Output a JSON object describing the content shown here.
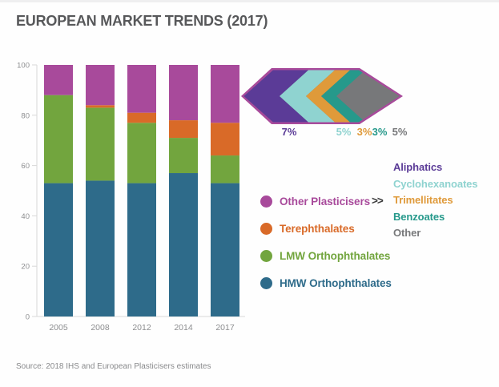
{
  "title": "EUROPEAN MARKET TRENDS (2017)",
  "source": "Source: 2018 IHS and European Plasticisers estimates",
  "chart_data": {
    "type": "bar",
    "stacked": true,
    "title": "EUROPEAN MARKET TRENDS (2017)",
    "xlabel": "",
    "ylabel": "",
    "categories": [
      "2005",
      "2008",
      "2012",
      "2014",
      "2017"
    ],
    "series": [
      {
        "name": "HMW Orthophthalates",
        "color": "#2e6b8a",
        "values": [
          53,
          54,
          53,
          57,
          53
        ]
      },
      {
        "name": "LMW Orthophthalates",
        "color": "#72a53e",
        "values": [
          35,
          29,
          24,
          14,
          11
        ]
      },
      {
        "name": "Terephthalates",
        "color": "#d96a28",
        "values": [
          0,
          1,
          4,
          7,
          13
        ]
      },
      {
        "name": "Other Plasticisers",
        "color": "#a84a9b",
        "values": [
          12,
          16,
          19,
          22,
          23
        ]
      }
    ],
    "ylim": [
      0,
      100
    ],
    "yticks": [
      0,
      20,
      40,
      60,
      80,
      100
    ],
    "grid": false,
    "legend_position": "right"
  },
  "legend": {
    "more_glyph": ">>",
    "items": [
      {
        "label": "Other Plasticisers",
        "color": "#a84a9b"
      },
      {
        "label": "Terephthalates",
        "color": "#d96a28"
      },
      {
        "label": "LMW Orthophthalates",
        "color": "#72a53e"
      },
      {
        "label": "HMW Orthophthalates",
        "color": "#2e6b8a"
      }
    ]
  },
  "breakdown": {
    "outline_color": "#a84a9b",
    "items": [
      {
        "label": "Aliphatics",
        "pct": "7%",
        "color": "#5b3b97"
      },
      {
        "label": "Cyclohexanoates",
        "pct": "5%",
        "color": "#8fd3d0"
      },
      {
        "label": "Trimellitates",
        "pct": "3%",
        "color": "#df9a3a"
      },
      {
        "label": "Benzoates",
        "pct": "3%",
        "color": "#26998b"
      },
      {
        "label": "Other",
        "pct": "5%",
        "color": "#77787a"
      }
    ]
  },
  "axis_style": {
    "tick_color": "#8d8e90",
    "line_color": "#d8d8d8"
  }
}
